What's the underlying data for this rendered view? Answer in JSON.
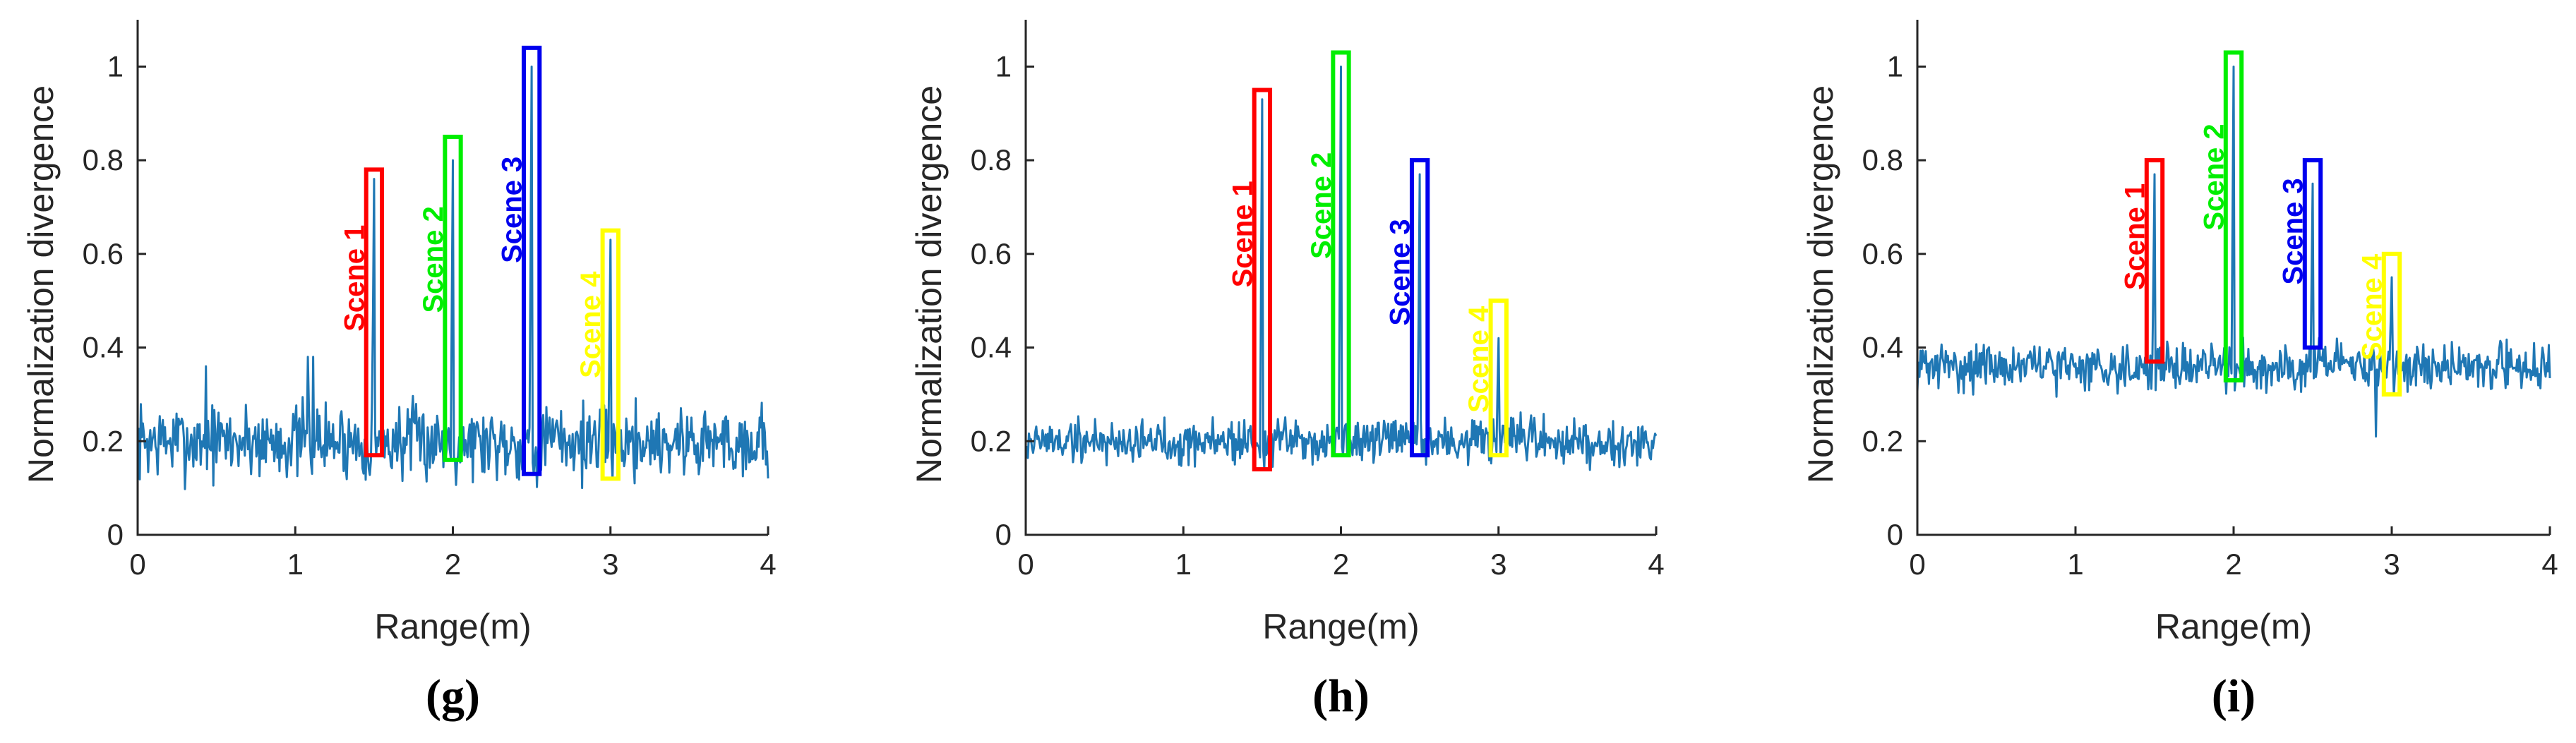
{
  "chart_data": [
    {
      "type": "line",
      "panel_label": "(g)",
      "xlabel": "Range(m)",
      "ylabel": "Normalization divergence",
      "xlim": [
        0,
        4
      ],
      "ylim": [
        0,
        1.1
      ],
      "xticks": [
        0,
        1,
        2,
        3,
        4
      ],
      "yticks": [
        0,
        0.2,
        0.4,
        0.6,
        0.8,
        1
      ],
      "xtick_labels": [
        "0",
        "1",
        "2",
        "3",
        "4"
      ],
      "ytick_labels": [
        "0",
        "0.2",
        "0.4",
        "0.6",
        "0.8",
        "1"
      ],
      "line_color": "#1f77b4",
      "series": [
        {
          "name": "divergence",
          "baseline": 0.2,
          "noise": 0.05,
          "seed": 7
        }
      ],
      "bumps": [
        {
          "x": 0.43,
          "y": 0.36
        },
        {
          "x": 1.08,
          "y": 0.38
        },
        {
          "x": 1.11,
          "y": 0.38
        }
      ],
      "scenes": [
        {
          "label": "Scene 1",
          "color": "#ff0000",
          "x": 1.5,
          "peak": 0.76,
          "x_range": [
            1.45,
            1.55
          ],
          "y_range": [
            0.17,
            0.78
          ]
        },
        {
          "label": "Scene 2",
          "color": "#00ee00",
          "x": 2.0,
          "peak": 0.8,
          "x_range": [
            1.95,
            2.05
          ],
          "y_range": [
            0.16,
            0.85
          ]
        },
        {
          "label": "Scene 3",
          "color": "#0000ee",
          "x": 2.5,
          "peak": 1.0,
          "x_range": [
            2.45,
            2.55
          ],
          "y_range": [
            0.13,
            1.04
          ]
        },
        {
          "label": "Scene 4",
          "color": "#ffff00",
          "x": 3.0,
          "peak": 0.63,
          "x_range": [
            2.95,
            3.05
          ],
          "y_range": [
            0.12,
            0.65
          ]
        }
      ]
    },
    {
      "type": "line",
      "panel_label": "(h)",
      "xlabel": "Range(m)",
      "ylabel": "Normalization divergence",
      "xlim": [
        0,
        4
      ],
      "ylim": [
        0,
        1.1
      ],
      "xticks": [
        0,
        1,
        2,
        3,
        4
      ],
      "yticks": [
        0,
        0.2,
        0.4,
        0.6,
        0.8,
        1
      ],
      "xtick_labels": [
        "0",
        "1",
        "2",
        "3",
        "4"
      ],
      "ytick_labels": [
        "0",
        "0.2",
        "0.4",
        "0.6",
        "0.8",
        "1"
      ],
      "line_color": "#1f77b4",
      "series": [
        {
          "name": "divergence",
          "baseline": 0.2,
          "noise": 0.03,
          "seed": 19
        }
      ],
      "bumps": [],
      "scenes": [
        {
          "label": "Scene 1",
          "color": "#ff0000",
          "x": 1.5,
          "peak": 0.93,
          "x_range": [
            1.45,
            1.55
          ],
          "y_range": [
            0.14,
            0.95
          ]
        },
        {
          "label": "Scene 2",
          "color": "#00ee00",
          "x": 2.0,
          "peak": 1.0,
          "x_range": [
            1.95,
            2.05
          ],
          "y_range": [
            0.17,
            1.03
          ]
        },
        {
          "label": "Scene 3",
          "color": "#0000ee",
          "x": 2.5,
          "peak": 0.77,
          "x_range": [
            2.45,
            2.55
          ],
          "y_range": [
            0.17,
            0.8
          ]
        },
        {
          "label": "Scene 4",
          "color": "#ffff00",
          "x": 3.0,
          "peak": 0.42,
          "x_range": [
            2.95,
            3.05
          ],
          "y_range": [
            0.17,
            0.5
          ]
        }
      ]
    },
    {
      "type": "line",
      "panel_label": "(i)",
      "xlabel": "Range(m)",
      "ylabel": "Normalization divergence",
      "xlim": [
        0,
        4
      ],
      "ylim": [
        0,
        1.1
      ],
      "xticks": [
        0,
        1,
        2,
        3,
        4
      ],
      "yticks": [
        0,
        0.2,
        0.4,
        0.6,
        0.8,
        1
      ],
      "xtick_labels": [
        "0",
        "1",
        "2",
        "3",
        "4"
      ],
      "ytick_labels": [
        "0",
        "0.2",
        "0.4",
        "0.6",
        "0.8",
        "1"
      ],
      "line_color": "#1f77b4",
      "series": [
        {
          "name": "divergence",
          "baseline": 0.36,
          "noise": 0.03,
          "seed": 31
        }
      ],
      "bumps": [
        {
          "x": 2.9,
          "y": 0.21
        }
      ],
      "scenes": [
        {
          "label": "Scene 1",
          "color": "#ff0000",
          "x": 1.5,
          "peak": 0.77,
          "x_range": [
            1.45,
            1.55
          ],
          "y_range": [
            0.37,
            0.8
          ]
        },
        {
          "label": "Scene 2",
          "color": "#00ee00",
          "x": 2.0,
          "peak": 1.0,
          "x_range": [
            1.95,
            2.05
          ],
          "y_range": [
            0.33,
            1.03
          ]
        },
        {
          "label": "Scene 3",
          "color": "#0000ee",
          "x": 2.5,
          "peak": 0.75,
          "x_range": [
            2.45,
            2.55
          ],
          "y_range": [
            0.4,
            0.8
          ]
        },
        {
          "label": "Scene 4",
          "color": "#ffff00",
          "x": 3.0,
          "peak": 0.55,
          "x_range": [
            2.95,
            3.05
          ],
          "y_range": [
            0.3,
            0.6
          ]
        }
      ]
    }
  ]
}
